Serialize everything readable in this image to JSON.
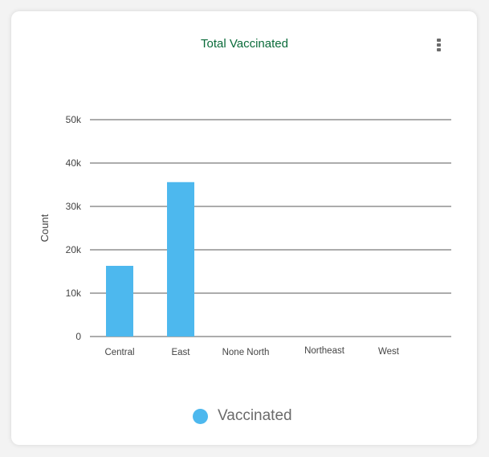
{
  "card": {
    "title": "Total Vaccinated"
  },
  "menu": {
    "icon": "more-vertical-icon"
  },
  "chart_data": {
    "type": "bar",
    "title": "Total Vaccinated",
    "xlabel": "",
    "ylabel": "Count",
    "categories": [
      "Central",
      "East",
      "None North",
      "Northeast",
      "West"
    ],
    "series": [
      {
        "name": "Vaccinated",
        "values": [
          16300,
          35600,
          0,
          0,
          0
        ]
      }
    ],
    "ylim": [
      0,
      50000
    ],
    "yticks": [
      0,
      10000,
      20000,
      30000,
      40000,
      50000
    ],
    "ytick_labels": [
      "0",
      "10k",
      "20k",
      "30k",
      "40k",
      "50k"
    ],
    "grid": true,
    "legend": "bottom",
    "color": "#4db8ee"
  },
  "legend": {
    "label": "Vaccinated",
    "color": "#4db8ee"
  }
}
